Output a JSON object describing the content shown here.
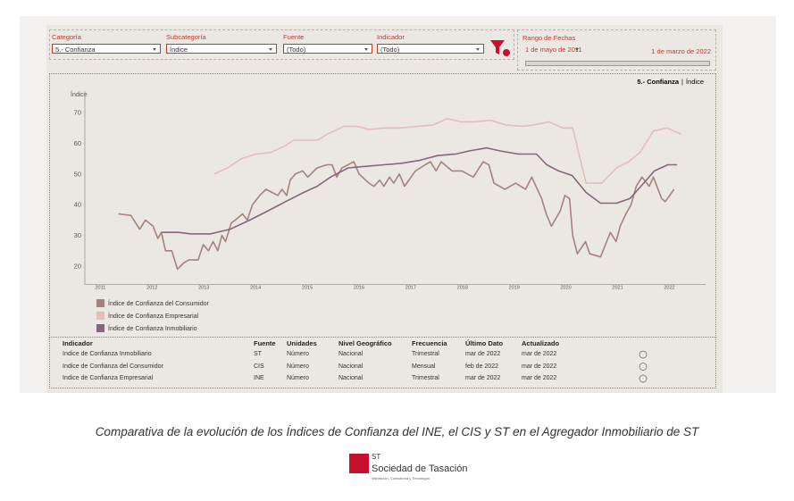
{
  "filters": [
    {
      "label": "Categoría",
      "value": "5.- Confianza"
    },
    {
      "label": "Subcategoría",
      "value": "Índice"
    },
    {
      "label": "Fuente",
      "value": "(Todo)"
    },
    {
      "label": "Indicador",
      "value": "(Todo)"
    }
  ],
  "date_range": {
    "label": "Rango de Fechas",
    "start": "1 de mayo de 2011",
    "end": "1 de marzo de 2022"
  },
  "chart_data": {
    "type": "line",
    "title": "5.- Confianza",
    "subtitle": "Índice",
    "ylabel": "Índice",
    "xlim": [
      2010.7,
      2022.7
    ],
    "xticks": [
      2011,
      2012,
      2013,
      2014,
      2015,
      2016,
      2017,
      2018,
      2019,
      2020,
      2021,
      2022
    ],
    "ylim": [
      14,
      77
    ],
    "yticks": [
      20,
      30,
      40,
      50,
      60,
      70
    ],
    "grid": false,
    "legend": "bottom-left",
    "series": [
      {
        "name": "Índice de Confianza del Consumidor",
        "color": "#a5827d",
        "x": [
          2011.35,
          2011.59,
          2011.76,
          2011.87,
          2012.02,
          2012.11,
          2012.18,
          2012.26,
          2012.38,
          2012.49,
          2012.61,
          2012.71,
          2012.89,
          2012.99,
          2013.09,
          2013.18,
          2013.27,
          2013.35,
          2013.42,
          2013.53,
          2013.61,
          2013.75,
          2013.84,
          2013.94,
          2014.08,
          2014.2,
          2014.32,
          2014.43,
          2014.51,
          2014.6,
          2014.67,
          2014.77,
          2014.91,
          2015.01,
          2015.19,
          2015.38,
          2015.48,
          2015.57,
          2015.67,
          2015.9,
          2016.0,
          2016.19,
          2016.29,
          2016.4,
          2016.48,
          2016.59,
          2016.67,
          2016.78,
          2016.88,
          2017.09,
          2017.28,
          2017.38,
          2017.49,
          2017.59,
          2017.8,
          2017.99,
          2018.21,
          2018.4,
          2018.51,
          2018.61,
          2018.82,
          2019.03,
          2019.22,
          2019.34,
          2019.53,
          2019.62,
          2019.72,
          2019.89,
          2019.98,
          2020.07,
          2020.13,
          2020.22,
          2020.38,
          2020.46,
          2020.67,
          2020.86,
          2020.97,
          2021.05,
          2021.16,
          2021.26,
          2021.36,
          2021.47,
          2021.61,
          2021.69,
          2021.85,
          2021.92,
          2022.09
        ],
        "values": [
          37,
          36.5,
          32,
          35,
          33,
          29,
          31,
          25,
          25,
          19,
          21,
          22,
          22,
          27,
          25,
          28,
          25,
          30,
          28,
          34,
          35,
          37,
          35,
          40,
          43,
          45,
          44,
          43,
          45,
          43,
          48,
          50,
          51,
          49,
          52,
          53,
          53,
          49,
          52,
          54,
          50,
          47,
          46,
          48,
          46,
          49,
          47,
          50,
          46,
          51,
          53,
          54,
          51,
          54,
          51,
          51,
          49,
          54,
          53,
          47,
          45,
          47,
          45,
          49,
          42,
          37,
          33,
          38,
          43,
          42,
          30,
          24,
          28,
          24,
          23,
          31,
          28,
          33,
          37,
          40,
          46,
          49,
          46,
          49,
          42,
          41,
          45
        ]
      },
      {
        "name": "Índice de Confianza Empresarial",
        "color": "#e4bcbb",
        "x": [
          2013.2,
          2013.46,
          2013.73,
          2014.01,
          2014.29,
          2014.55,
          2014.74,
          2015.01,
          2015.2,
          2015.39,
          2015.71,
          2015.97,
          2016.19,
          2016.48,
          2016.78,
          2017.14,
          2017.44,
          2017.7,
          2017.97,
          2018.25,
          2018.53,
          2018.84,
          2019.15,
          2019.39,
          2019.67,
          2019.94,
          2020.13,
          2020.39,
          2020.69,
          2020.98,
          2021.21,
          2021.43,
          2021.69,
          2021.95,
          2022.23
        ],
        "values": [
          50,
          52,
          55,
          56.5,
          57,
          59,
          61,
          61,
          61,
          63,
          65.5,
          65.5,
          64.5,
          65,
          65,
          65.5,
          66,
          68,
          67,
          67,
          67.5,
          66,
          65.5,
          66,
          67,
          65,
          65,
          47,
          47,
          52,
          54,
          57,
          64,
          65,
          63
        ]
      },
      {
        "name": "Índice de Confianza Inmobiliario",
        "color": "#86657f",
        "x": [
          2012.18,
          2012.51,
          2012.76,
          2013.13,
          2013.51,
          2013.89,
          2014.24,
          2014.58,
          2014.93,
          2015.19,
          2015.45,
          2015.79,
          2016.14,
          2016.48,
          2016.83,
          2017.18,
          2017.52,
          2017.87,
          2018.13,
          2018.47,
          2018.73,
          2019.08,
          2019.43,
          2019.63,
          2019.86,
          2020.12,
          2020.39,
          2020.67,
          2020.98,
          2021.24,
          2021.45,
          2021.71,
          2021.97,
          2022.15
        ],
        "values": [
          31,
          31,
          30.5,
          30.5,
          32,
          35,
          38,
          41,
          44,
          46,
          49,
          52,
          52.5,
          53,
          53.5,
          54.5,
          56,
          56.5,
          57.5,
          58.5,
          57.5,
          56.5,
          56.5,
          53,
          51,
          49.5,
          44,
          40.5,
          40.5,
          42,
          46,
          51,
          53,
          53
        ]
      }
    ]
  },
  "table": {
    "headers": [
      "Indicador",
      "Fuente",
      "Unidades",
      "Nivel Geográfico",
      "Frecuencia",
      "Último Dato",
      "Actualizado"
    ],
    "rows": [
      [
        "Indice de Confianza Inmobiliario",
        "ST",
        "Número",
        "Nacional",
        "Trimestral",
        "mar de 2022",
        "mar de 2022"
      ],
      [
        "Indice de Confianza del Consumidor",
        "CIS",
        "Número",
        "Nacional",
        "Mensual",
        "feb de 2022",
        "mar de 2022"
      ],
      [
        "Indice de Confianza Empresarial",
        "INE",
        "Número",
        "Nacional",
        "Trimestral",
        "mar de 2022",
        "mar de 2022"
      ]
    ]
  },
  "caption": "Comparativa de la evolución de los Índices de Confianza del INE, el CIS y ST en el Agregador Inmobiliario de ST",
  "logo": {
    "mark": "ST",
    "name": "Sociedad de Tasación",
    "tagline": "Valoración, Consultoría y Tecnología"
  }
}
